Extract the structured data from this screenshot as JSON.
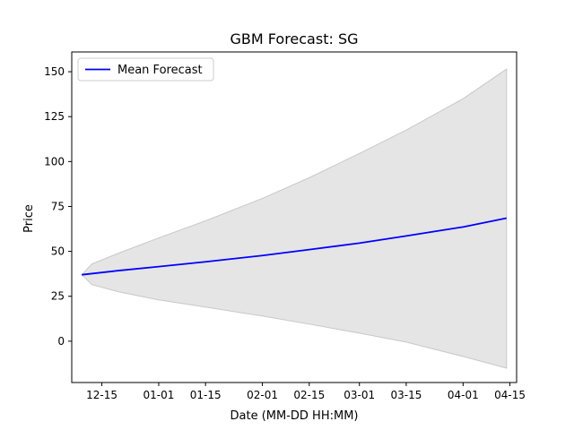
{
  "chart_data": {
    "type": "line",
    "title": "GBM Forecast: SG",
    "xlabel": "Date (MM-DD HH:MM)",
    "ylabel": "Price",
    "x_start": "2023-12-09",
    "x_end": "2024-04-14",
    "xlim": [
      "2023-12-06",
      "2024-04-17"
    ],
    "ylim": [
      -23,
      161
    ],
    "x_ticks": [
      {
        "date": "2023-12-15",
        "label": "12-15"
      },
      {
        "date": "2024-01-01",
        "label": "01-01"
      },
      {
        "date": "2024-01-15",
        "label": "01-15"
      },
      {
        "date": "2024-02-01",
        "label": "02-01"
      },
      {
        "date": "2024-02-15",
        "label": "02-15"
      },
      {
        "date": "2024-03-01",
        "label": "03-01"
      },
      {
        "date": "2024-03-15",
        "label": "03-15"
      },
      {
        "date": "2024-04-01",
        "label": "04-01"
      },
      {
        "date": "2024-04-15",
        "label": "04-15"
      }
    ],
    "y_ticks": [
      {
        "value": 0,
        "label": "0"
      },
      {
        "value": 25,
        "label": "25"
      },
      {
        "value": 50,
        "label": "50"
      },
      {
        "value": 75,
        "label": "75"
      },
      {
        "value": 100,
        "label": "100"
      },
      {
        "value": 125,
        "label": "125"
      },
      {
        "value": 150,
        "label": "150"
      }
    ],
    "series": [
      {
        "name": "Mean Forecast",
        "color": "#0000ff",
        "points": [
          {
            "x": "2023-12-09",
            "y": 37.0
          },
          {
            "x": "2023-12-20",
            "y": 39.3
          },
          {
            "x": "2024-01-01",
            "y": 41.5
          },
          {
            "x": "2024-01-15",
            "y": 44.2
          },
          {
            "x": "2024-02-01",
            "y": 47.7
          },
          {
            "x": "2024-02-15",
            "y": 51.0
          },
          {
            "x": "2024-03-01",
            "y": 54.6
          },
          {
            "x": "2024-03-15",
            "y": 58.6
          },
          {
            "x": "2024-04-01",
            "y": 63.6
          },
          {
            "x": "2024-04-14",
            "y": 68.5
          }
        ]
      }
    ],
    "band": {
      "color": "#e5e5e5",
      "edge_color": "#c8c8c8",
      "upper": [
        {
          "x": "2023-12-09",
          "y": 37.0
        },
        {
          "x": "2023-12-12",
          "y": 43.0
        },
        {
          "x": "2023-12-20",
          "y": 49.0
        },
        {
          "x": "2024-01-01",
          "y": 57.5
        },
        {
          "x": "2024-01-15",
          "y": 67.0
        },
        {
          "x": "2024-02-01",
          "y": 79.5
        },
        {
          "x": "2024-02-15",
          "y": 91.0
        },
        {
          "x": "2024-03-01",
          "y": 104.5
        },
        {
          "x": "2024-03-15",
          "y": 117.5
        },
        {
          "x": "2024-04-01",
          "y": 135.0
        },
        {
          "x": "2024-04-14",
          "y": 151.5
        }
      ],
      "lower": [
        {
          "x": "2023-12-09",
          "y": 37.0
        },
        {
          "x": "2023-12-12",
          "y": 31.5
        },
        {
          "x": "2023-12-20",
          "y": 27.5
        },
        {
          "x": "2024-01-01",
          "y": 23.0
        },
        {
          "x": "2024-01-15",
          "y": 19.0
        },
        {
          "x": "2024-02-01",
          "y": 14.0
        },
        {
          "x": "2024-02-15",
          "y": 9.5
        },
        {
          "x": "2024-03-01",
          "y": 4.5
        },
        {
          "x": "2024-03-15",
          "y": -0.5
        },
        {
          "x": "2024-04-01",
          "y": -8.5
        },
        {
          "x": "2024-04-14",
          "y": -15.0
        }
      ]
    },
    "grid": false,
    "legend": {
      "position": "top-left",
      "entries": [
        "Mean Forecast"
      ]
    }
  }
}
